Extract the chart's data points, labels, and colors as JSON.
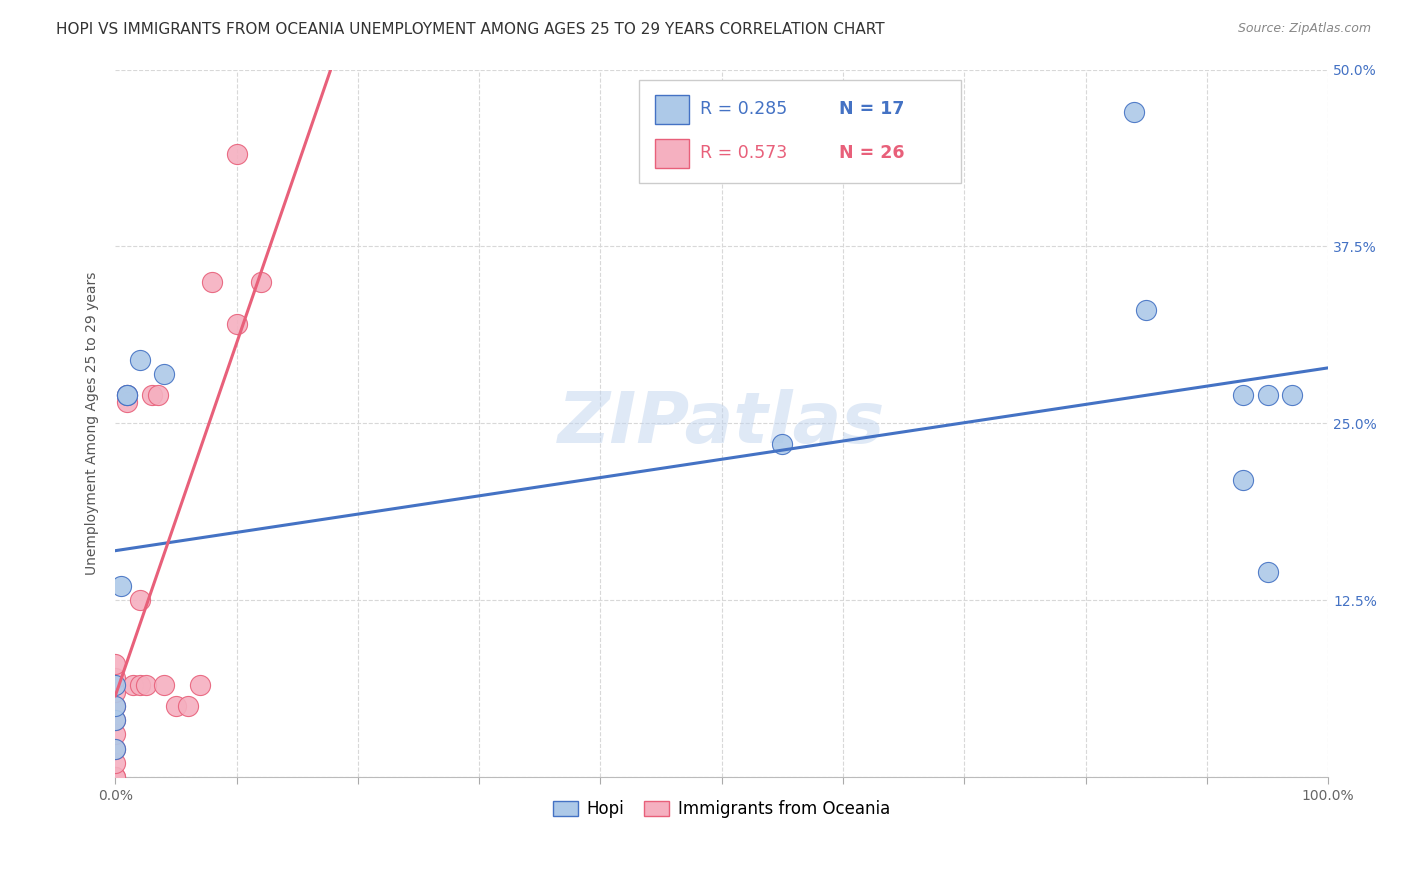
{
  "title": "HOPI VS IMMIGRANTS FROM OCEANIA UNEMPLOYMENT AMONG AGES 25 TO 29 YEARS CORRELATION CHART",
  "source": "Source: ZipAtlas.com",
  "ylabel": "Unemployment Among Ages 25 to 29 years",
  "xlim": [
    0,
    1.0
  ],
  "ylim": [
    0,
    0.5
  ],
  "xticks": [
    0.0,
    0.1,
    0.2,
    0.3,
    0.4,
    0.5,
    0.6,
    0.7,
    0.8,
    0.9,
    1.0
  ],
  "xticklabels": [
    "0.0%",
    "",
    "",
    "",
    "",
    "",
    "",
    "",
    "",
    "",
    "100.0%"
  ],
  "yticks": [
    0.0,
    0.125,
    0.25,
    0.375,
    0.5
  ],
  "yticklabels_right": [
    "",
    "12.5%",
    "25.0%",
    "37.5%",
    "50.0%"
  ],
  "hopi_x": [
    0.0,
    0.0,
    0.0,
    0.0,
    0.005,
    0.01,
    0.01,
    0.02,
    0.04,
    0.55,
    0.84,
    0.85,
    0.93,
    0.93,
    0.95,
    0.95,
    0.97
  ],
  "hopi_y": [
    0.02,
    0.04,
    0.05,
    0.065,
    0.135,
    0.27,
    0.27,
    0.295,
    0.285,
    0.235,
    0.47,
    0.33,
    0.27,
    0.21,
    0.145,
    0.27,
    0.27
  ],
  "oceania_x": [
    0.0,
    0.0,
    0.0,
    0.0,
    0.0,
    0.0,
    0.0,
    0.0,
    0.0,
    0.0,
    0.01,
    0.01,
    0.015,
    0.02,
    0.02,
    0.025,
    0.03,
    0.035,
    0.04,
    0.05,
    0.06,
    0.07,
    0.08,
    0.1,
    0.1,
    0.12
  ],
  "oceania_y": [
    0.0,
    0.0,
    0.01,
    0.02,
    0.03,
    0.04,
    0.05,
    0.06,
    0.07,
    0.08,
    0.27,
    0.265,
    0.065,
    0.065,
    0.125,
    0.065,
    0.27,
    0.27,
    0.065,
    0.05,
    0.05,
    0.065,
    0.35,
    0.44,
    0.32,
    0.35
  ],
  "hopi_R": 0.285,
  "hopi_N": 17,
  "oceania_R": 0.573,
  "oceania_N": 26,
  "hopi_color": "#adc9e8",
  "oceania_color": "#f5b0c0",
  "hopi_line_color": "#4472c4",
  "oceania_line_color": "#e8607a",
  "hopi_text_color": "#4472c4",
  "oceania_text_color": "#e8607a",
  "watermark": "ZIPatlas",
  "legend_labels": [
    "Hopi",
    "Immigrants from Oceania"
  ],
  "background_color": "#ffffff",
  "grid_color": "#d8d8d8",
  "title_fontsize": 11,
  "axis_fontsize": 10,
  "tick_fontsize": 10,
  "legend_fontsize": 12
}
